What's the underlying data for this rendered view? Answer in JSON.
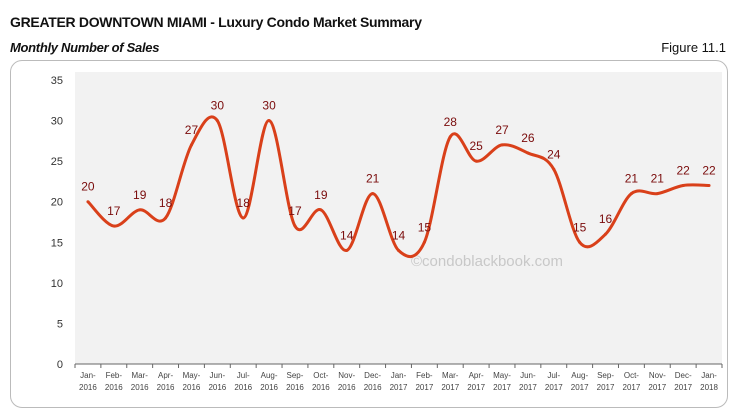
{
  "header": {
    "title": "GREATER DOWNTOWN MIAMI - Luxury Condo Market Summary",
    "subtitle": "Monthly Number of Sales",
    "figure": "Figure 11.1"
  },
  "watermark": "©condoblackbook.com",
  "chart_data": {
    "type": "line",
    "title": "Monthly Number of Sales",
    "categories": [
      "Jan-2016",
      "Feb-2016",
      "Mar-2016",
      "Apr-2016",
      "May-2016",
      "Jun-2016",
      "Jul-2016",
      "Aug-2016",
      "Sep-2016",
      "Oct-2016",
      "Nov-2016",
      "Dec-2016",
      "Jan-2017",
      "Feb-2017",
      "Mar-2017",
      "Apr-2017",
      "May-2017",
      "Jun-2017",
      "Jul-2017",
      "Aug-2017",
      "Sep-2017",
      "Oct-2017",
      "Nov-2017",
      "Dec-2017",
      "Jan-2018"
    ],
    "values": [
      20,
      17,
      19,
      18,
      27,
      30,
      18,
      30,
      17,
      19,
      14,
      21,
      14,
      15,
      28,
      25,
      27,
      26,
      24,
      15,
      16,
      21,
      21,
      22,
      22
    ],
    "ylim": [
      0,
      35
    ],
    "yticks": [
      0,
      5,
      10,
      15,
      20,
      25,
      30,
      35
    ],
    "grid": false,
    "smooth": true,
    "line_color": "#d9401a",
    "label_color": "#7a0c0c",
    "plot_bg": "#f2f2f2"
  }
}
